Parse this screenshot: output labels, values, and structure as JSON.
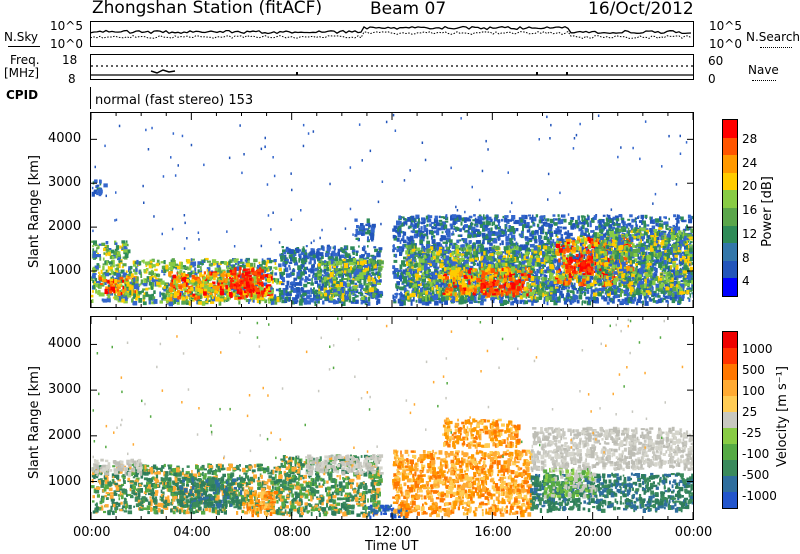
{
  "header": {
    "station": "Zhongshan Station (fitACF)",
    "beam": "Beam 07",
    "date": "16/Oct/2012"
  },
  "top_panels": {
    "nsky_label": "N.Sky",
    "nsky_ticks": [
      "10^5",
      "10^0"
    ],
    "nsearch_label": "N.Search",
    "nsearch_ticks": [
      "10^5",
      "10^0"
    ],
    "freq_label": "Freq.",
    "freq_unit": "[MHz]",
    "freq_ticks": [
      "18",
      "8"
    ],
    "nave_label": "Nave",
    "nave_ticks": [
      "60",
      "0"
    ],
    "cpid_label": "CPID",
    "cpid_text": "normal (fast stereo) 153"
  },
  "chart_data": [
    {
      "type": "heatmap",
      "panel": "power",
      "ylabel": "Slant Range [km]",
      "x_ticks": [
        "00:00",
        "04:00",
        "08:00",
        "12:00",
        "16:00",
        "20:00",
        "00:00"
      ],
      "xlim_hours": [
        0,
        24
      ],
      "ylim_km": [
        180,
        4600
      ],
      "y_ticks": [
        1000,
        2000,
        3000,
        4000
      ],
      "colorbar": {
        "label": "Power [dB]",
        "ticks": [
          "28",
          "24",
          "20",
          "16",
          "12",
          "8",
          "4"
        ],
        "colors": [
          "#0000ff",
          "#2255bb",
          "#3377aa",
          "#2e8b57",
          "#5aa64a",
          "#88cc44",
          "#ffcc00",
          "#ff9900",
          "#ff5500",
          "#ff0000"
        ]
      },
      "regions": [
        {
          "t0": 0.0,
          "t1": 1.5,
          "r0": 350,
          "r1": 1700,
          "level": "mid"
        },
        {
          "t0": 0.3,
          "t1": 1.8,
          "r0": 500,
          "r1": 900,
          "level": "high"
        },
        {
          "t0": 1.5,
          "t1": 7.5,
          "r0": 300,
          "r1": 1300,
          "level": "mid"
        },
        {
          "t0": 3.0,
          "t1": 7.2,
          "r0": 400,
          "r1": 1000,
          "level": "high"
        },
        {
          "t0": 5.5,
          "t1": 6.8,
          "r0": 500,
          "r1": 1100,
          "level": "max"
        },
        {
          "t0": 7.5,
          "t1": 11.5,
          "r0": 300,
          "r1": 1600,
          "level": "low"
        },
        {
          "t0": 9.0,
          "t1": 11.5,
          "r0": 400,
          "r1": 1300,
          "level": "mid"
        },
        {
          "t0": 10.5,
          "t1": 11.2,
          "r0": 1700,
          "r1": 2200,
          "level": "low"
        },
        {
          "t0": 12.0,
          "t1": 24.0,
          "r0": 300,
          "r1": 2300,
          "level": "low"
        },
        {
          "t0": 12.5,
          "t1": 18.5,
          "r0": 400,
          "r1": 1600,
          "level": "mid"
        },
        {
          "t0": 14.0,
          "t1": 17.5,
          "r0": 500,
          "r1": 1100,
          "level": "high"
        },
        {
          "t0": 15.5,
          "t1": 17.0,
          "r0": 500,
          "r1": 800,
          "level": "max"
        },
        {
          "t0": 18.5,
          "t1": 21.5,
          "r0": 700,
          "r1": 1800,
          "level": "high"
        },
        {
          "t0": 18.8,
          "t1": 20.0,
          "r0": 1000,
          "r1": 1400,
          "level": "max"
        },
        {
          "t0": 20.0,
          "t1": 24.0,
          "r0": 500,
          "r1": 2000,
          "level": "mid"
        },
        {
          "t0": 0.0,
          "t1": 0.5,
          "r0": 2800,
          "r1": 3100,
          "level": "low"
        }
      ]
    },
    {
      "type": "heatmap",
      "panel": "velocity",
      "ylabel": "Slant Range [km]",
      "xlabel": "Time UT",
      "x_ticks": [
        "00:00",
        "04:00",
        "08:00",
        "12:00",
        "16:00",
        "20:00",
        "00:00"
      ],
      "xlim_hours": [
        0,
        24
      ],
      "ylim_km": [
        180,
        4600
      ],
      "y_ticks": [
        1000,
        2000,
        3000,
        4000
      ],
      "colorbar": {
        "label": "Velocity [m s⁻¹]",
        "ticks": [
          "1000",
          "500",
          "100",
          "25",
          "-25",
          "-100",
          "-500",
          "-1000"
        ],
        "colors": [
          "#2255cc",
          "#2e6e9e",
          "#3a8a5c",
          "#55aa44",
          "#88cc44",
          "#c8c8c0",
          "#ffcc55",
          "#ffaa33",
          "#ff7700",
          "#ff3300",
          "#ee0000"
        ]
      },
      "regions": [
        {
          "t0": 0.0,
          "t1": 7.5,
          "r0": 350,
          "r1": 1400,
          "level": "green"
        },
        {
          "t0": 0.0,
          "t1": 2.0,
          "r0": 1200,
          "r1": 1500,
          "level": "grey"
        },
        {
          "t0": 3.5,
          "t1": 6.0,
          "r0": 500,
          "r1": 1100,
          "level": "dkgreen"
        },
        {
          "t0": 6.0,
          "t1": 7.3,
          "r0": 300,
          "r1": 800,
          "level": "orange"
        },
        {
          "t0": 7.5,
          "t1": 11.5,
          "r0": 300,
          "r1": 1600,
          "level": "green"
        },
        {
          "t0": 8.5,
          "t1": 11.5,
          "r0": 1200,
          "r1": 1600,
          "level": "grey"
        },
        {
          "t0": 11.0,
          "t1": 12.5,
          "r0": 250,
          "r1": 500,
          "level": "blue"
        },
        {
          "t0": 12.0,
          "t1": 17.5,
          "r0": 300,
          "r1": 1700,
          "level": "orange"
        },
        {
          "t0": 14.0,
          "t1": 17.0,
          "r0": 1800,
          "r1": 2400,
          "level": "orange"
        },
        {
          "t0": 17.5,
          "t1": 24.0,
          "r0": 400,
          "r1": 1200,
          "level": "dkgreen"
        },
        {
          "t0": 17.5,
          "t1": 24.0,
          "r0": 1300,
          "r1": 2200,
          "level": "grey"
        },
        {
          "t0": 18.0,
          "t1": 20.0,
          "r0": 700,
          "r1": 1300,
          "level": "ltgreen"
        }
      ]
    }
  ]
}
